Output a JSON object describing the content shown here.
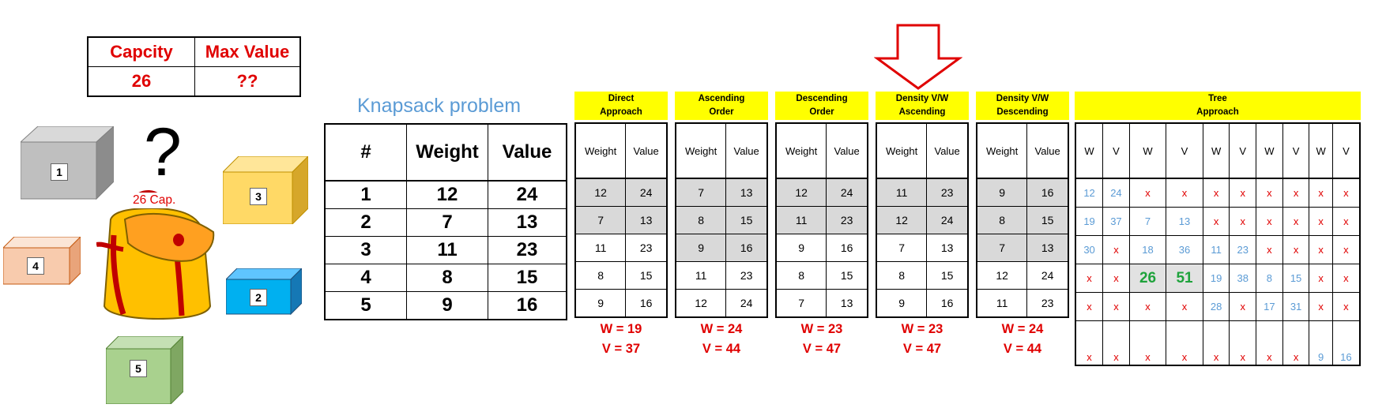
{
  "capacity_table": {
    "headers": [
      "Capcity",
      "Max Value"
    ],
    "values": [
      "26",
      "??"
    ]
  },
  "backpack": {
    "capacity_label": "26 Cap.",
    "question": "?"
  },
  "boxes": [
    "1",
    "2",
    "3",
    "4",
    "5"
  ],
  "title": "Knapsack problem",
  "items": {
    "headers": [
      "#",
      "Weight",
      "Value"
    ],
    "rows": [
      [
        "1",
        "12",
        "24"
      ],
      [
        "2",
        "7",
        "13"
      ],
      [
        "3",
        "11",
        "23"
      ],
      [
        "4",
        "8",
        "15"
      ],
      [
        "5",
        "9",
        "16"
      ]
    ]
  },
  "panels": [
    {
      "title": [
        "Direct",
        "Approach"
      ],
      "headers": [
        "Weight",
        "Value"
      ],
      "rows": [
        [
          "12",
          "24"
        ],
        [
          "7",
          "13"
        ],
        [
          "11",
          "23"
        ],
        [
          "8",
          "15"
        ],
        [
          "9",
          "16"
        ]
      ],
      "selected": 2,
      "result_w": "W = 19",
      "result_v": "V = 37"
    },
    {
      "title": [
        "Ascending",
        "Order"
      ],
      "headers": [
        "Weight",
        "Value"
      ],
      "rows": [
        [
          "7",
          "13"
        ],
        [
          "8",
          "15"
        ],
        [
          "9",
          "16"
        ],
        [
          "11",
          "23"
        ],
        [
          "12",
          "24"
        ]
      ],
      "selected": 3,
      "result_w": "W = 24",
      "result_v": "V = 44"
    },
    {
      "title": [
        "Descending",
        "Order"
      ],
      "headers": [
        "Weight",
        "Value"
      ],
      "rows": [
        [
          "12",
          "24"
        ],
        [
          "11",
          "23"
        ],
        [
          "9",
          "16"
        ],
        [
          "8",
          "15"
        ],
        [
          "7",
          "13"
        ]
      ],
      "selected": 2,
      "result_w": "W = 23",
      "result_v": "V = 47"
    },
    {
      "title": [
        "Density V/W",
        "Ascending"
      ],
      "headers": [
        "Weight",
        "Value"
      ],
      "rows": [
        [
          "11",
          "23"
        ],
        [
          "12",
          "24"
        ],
        [
          "7",
          "13"
        ],
        [
          "8",
          "15"
        ],
        [
          "9",
          "16"
        ]
      ],
      "selected": 2,
      "result_w": "W = 23",
      "result_v": "V = 47"
    },
    {
      "title": [
        "Density V/W",
        "Descending"
      ],
      "headers": [
        "Weight",
        "Value"
      ],
      "rows": [
        [
          "9",
          "16"
        ],
        [
          "8",
          "15"
        ],
        [
          "7",
          "13"
        ],
        [
          "12",
          "24"
        ],
        [
          "11",
          "23"
        ]
      ],
      "selected": 3,
      "result_w": "W = 24",
      "result_v": "V = 44"
    }
  ],
  "tree": {
    "title": [
      "Tree",
      "Approach"
    ],
    "headers": [
      "W",
      "V",
      "W",
      "V",
      "W",
      "V",
      "W",
      "V",
      "W",
      "V"
    ],
    "rows": [
      [
        "12",
        "24",
        "x",
        "x",
        "x",
        "x",
        "x",
        "x",
        "x",
        "x"
      ],
      [
        "19",
        "37",
        "7",
        "13",
        "x",
        "x",
        "x",
        "x",
        "x",
        "x"
      ],
      [
        "30",
        "x",
        "18",
        "36",
        "11",
        "23",
        "x",
        "x",
        "x",
        "x"
      ],
      [
        "x",
        "x",
        "26",
        "51",
        "19",
        "38",
        "8",
        "15",
        "x",
        "x"
      ],
      [
        "x",
        "x",
        "x",
        "x",
        "28",
        "x",
        "17",
        "31",
        "x",
        "x"
      ],
      [
        "x",
        "x",
        "x",
        "x",
        "x",
        "x",
        "x",
        "x",
        "9",
        "16"
      ]
    ],
    "highlight": {
      "row": 3,
      "cols": [
        2,
        3
      ]
    }
  },
  "colors": {
    "red": "#e00000",
    "blue": "#5b9bd5",
    "green": "#1fa33c",
    "yellow": "#ffff00",
    "gray": "#d9d9d9"
  }
}
